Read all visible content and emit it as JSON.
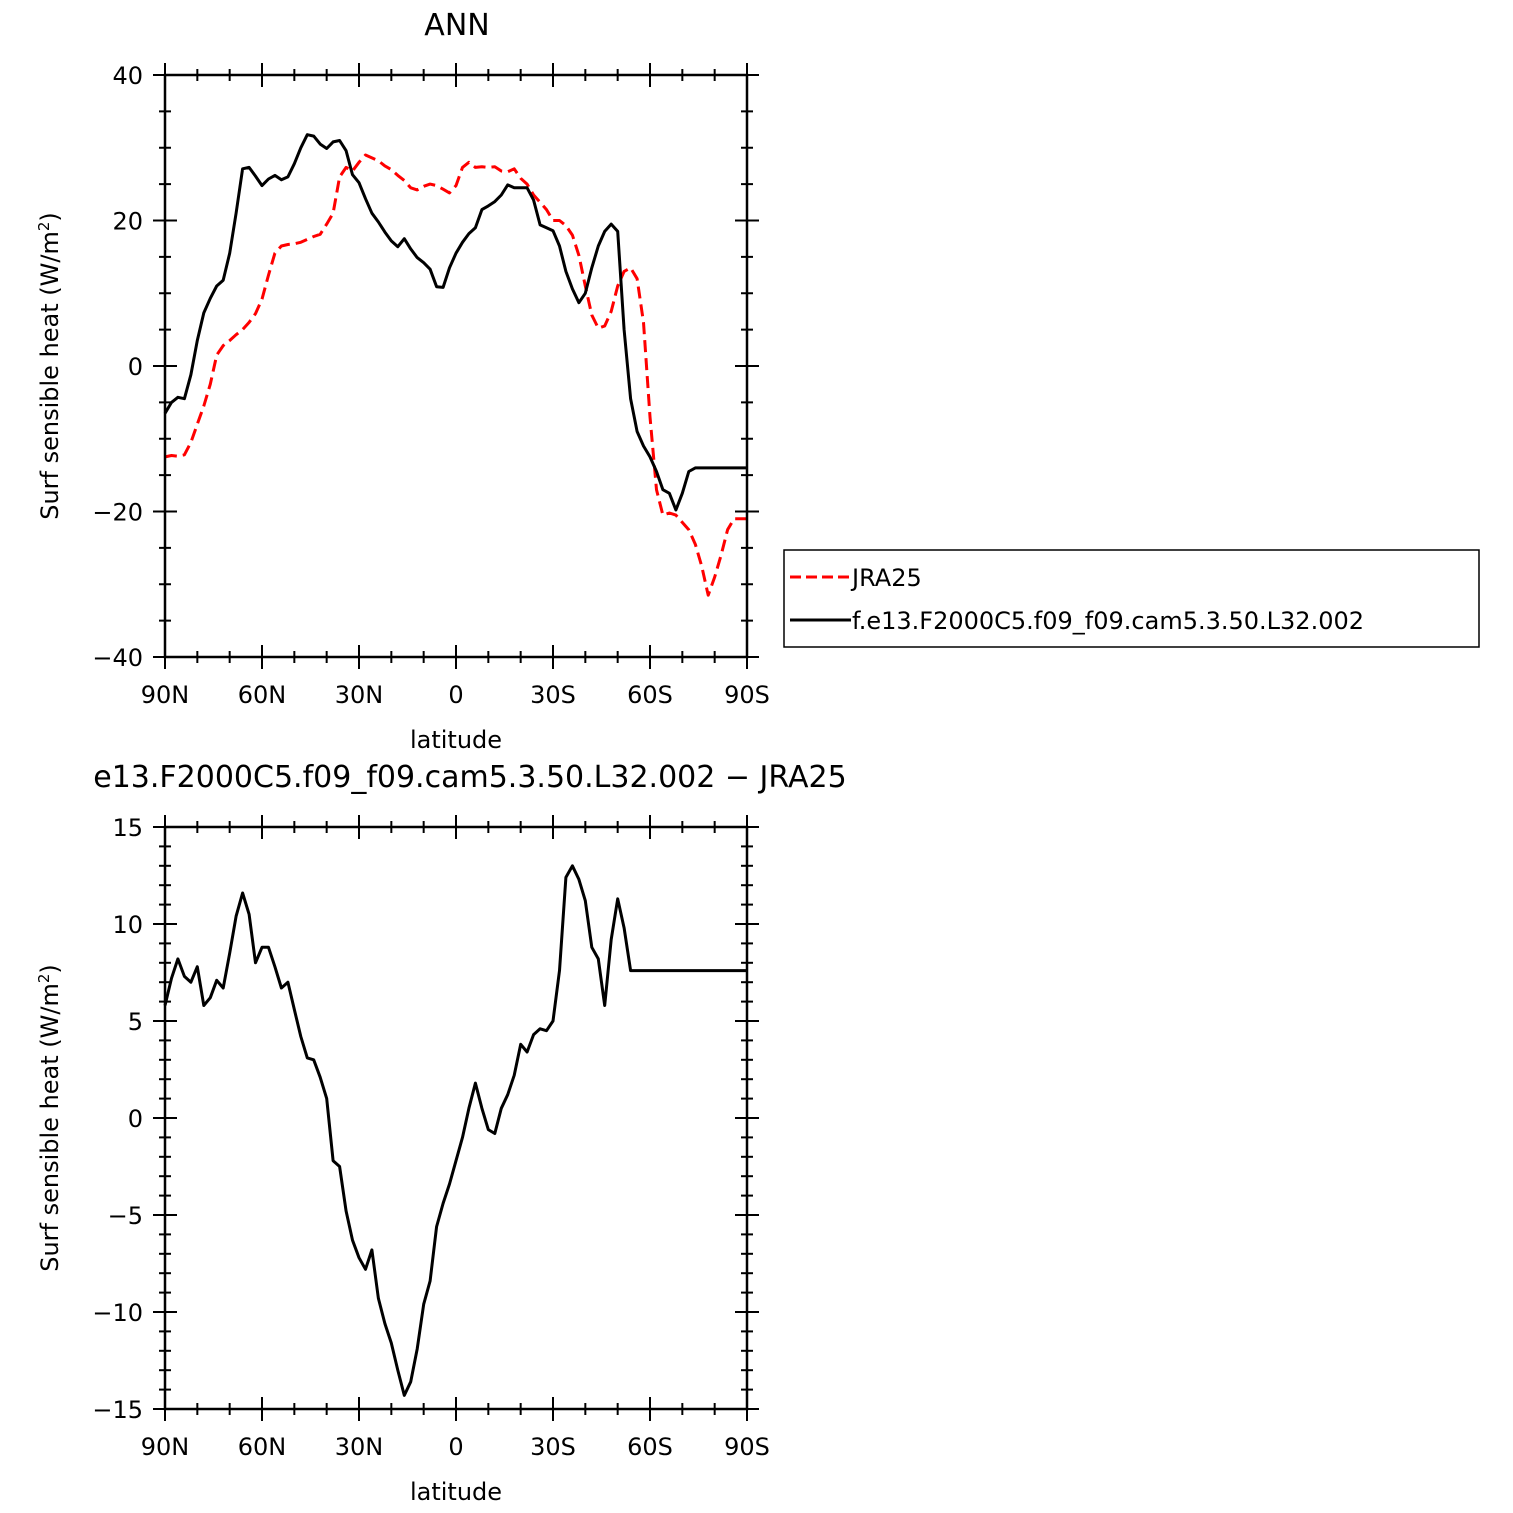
{
  "chart_data": [
    {
      "type": "line",
      "title": "ANN",
      "xlabel": "latitude",
      "ylabel_main": "Surf sensible heat (W/m",
      "ylabel_sup": "2",
      "ylabel_close": ")",
      "xlim": [
        90,
        -90
      ],
      "ylim": [
        -40,
        40
      ],
      "x_ticks": [
        {
          "value": 90,
          "label": "90N"
        },
        {
          "value": 60,
          "label": "60N"
        },
        {
          "value": 30,
          "label": "30N"
        },
        {
          "value": 0,
          "label": "0"
        },
        {
          "value": -30,
          "label": "30S"
        },
        {
          "value": -60,
          "label": "60S"
        },
        {
          "value": -90,
          "label": "90S"
        }
      ],
      "y_ticks": [
        {
          "value": -40,
          "label": "−40"
        },
        {
          "value": -20,
          "label": "−20"
        },
        {
          "value": 0,
          "label": "0"
        },
        {
          "value": 20,
          "label": "20"
        },
        {
          "value": 40,
          "label": "40"
        }
      ],
      "legend": {
        "placement": "right"
      },
      "series": [
        {
          "name": "JRA25",
          "color": "#ff0000",
          "dash": "dashed",
          "x": [
            90,
            88,
            86,
            84,
            82,
            80,
            78,
            76,
            74,
            72,
            70,
            68,
            66,
            64,
            62,
            60,
            58,
            56,
            54,
            52,
            50,
            48,
            46,
            44,
            42,
            40,
            38,
            36,
            34,
            32,
            30,
            28,
            26,
            24,
            22,
            20,
            18,
            16,
            14,
            12,
            10,
            8,
            6,
            4,
            2,
            0,
            -2,
            -4,
            -6,
            -8,
            -10,
            -12,
            -14,
            -16,
            -18,
            -20,
            -22,
            -24,
            -26,
            -28,
            -30,
            -32,
            -34,
            -36,
            -38,
            -40,
            -42,
            -44,
            -46,
            -48,
            -50,
            -52,
            -54,
            -56,
            -58,
            -60,
            -62,
            -64,
            -66,
            -68,
            -70,
            -72,
            -74,
            -76,
            -78,
            -80,
            -82,
            -84,
            -86,
            -88,
            -90
          ],
          "y": [
            -12.5,
            -12.3,
            -12.4,
            -12.2,
            -10.5,
            -8.0,
            -5.5,
            -2.5,
            1.5,
            2.8,
            3.5,
            4.3,
            5.0,
            6.0,
            7.2,
            9.2,
            12.5,
            15.5,
            16.5,
            16.7,
            16.8,
            17.0,
            17.4,
            17.8,
            18.1,
            19.5,
            21.0,
            26.0,
            27.3,
            26.8,
            28.0,
            29.0,
            28.6,
            28.2,
            27.5,
            27.0,
            26.2,
            25.5,
            24.5,
            24.2,
            24.7,
            25.0,
            24.8,
            24.3,
            23.8,
            24.8,
            27.3,
            28.0,
            27.3,
            27.4,
            27.3,
            27.4,
            26.8,
            26.7,
            27.1,
            25.8,
            25.0,
            23.5,
            22.5,
            21.5,
            20.0,
            20.0,
            19.3,
            18.0,
            15.2,
            11.0,
            7.0,
            5.2,
            5.5,
            7.5,
            11.0,
            13.0,
            13.5,
            12.0,
            6.0,
            -7.0,
            -17.0,
            -20.5,
            -20.2,
            -20.5,
            -21.5,
            -22.5,
            -24.5,
            -27.5,
            -31.5,
            -29.0,
            -26.0,
            -22.5,
            -21.0,
            -21.0,
            -21.0
          ]
        },
        {
          "name": "f.e13.F2000C5.f09_f09.cam5.3.50.L32.002",
          "color": "#000000",
          "dash": "solid",
          "x": [
            90,
            88,
            86,
            84,
            82,
            80,
            78,
            76,
            74,
            72,
            70,
            68,
            66,
            64,
            62,
            60,
            58,
            56,
            54,
            52,
            50,
            48,
            46,
            44,
            42,
            40,
            38,
            36,
            34,
            32,
            30,
            28,
            26,
            24,
            22,
            20,
            18,
            16,
            14,
            12,
            10,
            8,
            6,
            4,
            2,
            0,
            -2,
            -4,
            -6,
            -8,
            -10,
            -12,
            -14,
            -16,
            -18,
            -20,
            -22,
            -24,
            -26,
            -28,
            -30,
            -32,
            -34,
            -36,
            -38,
            -40,
            -42,
            -44,
            -46,
            -48,
            -50,
            -52,
            -54,
            -56,
            -58,
            -60,
            -62,
            -64,
            -66,
            -68,
            -70,
            -72,
            -74,
            -76,
            -78,
            -80,
            -82,
            -84,
            -86,
            -88,
            -90
          ],
          "y": [
            -6.5,
            -5.0,
            -4.3,
            -4.5,
            -1.2,
            3.5,
            7.3,
            9.3,
            11.0,
            11.8,
            15.5,
            21.0,
            27.1,
            27.3,
            26.1,
            24.8,
            25.7,
            26.2,
            25.6,
            26.0,
            27.8,
            30.0,
            31.8,
            31.6,
            30.5,
            29.9,
            30.8,
            31.0,
            29.6,
            26.3,
            25.2,
            23.0,
            21.0,
            19.8,
            18.4,
            17.2,
            16.4,
            17.5,
            16.1,
            14.9,
            14.2,
            13.3,
            10.9,
            10.8,
            13.5,
            15.5,
            17.0,
            18.2,
            19.0,
            21.5,
            22.0,
            22.6,
            23.5,
            24.9,
            24.5,
            24.5,
            24.5,
            22.8,
            19.4,
            19.0,
            18.6,
            16.5,
            13.0,
            10.6,
            8.7,
            10.0,
            13.5,
            16.5,
            18.5,
            19.5,
            18.5,
            5.0,
            -4.5,
            -9.0,
            -11.0,
            -12.5,
            -14.5,
            -17.0,
            -17.5,
            -19.8,
            -17.5,
            -14.5,
            -14.0,
            -14.0,
            -14.0,
            -14.0,
            -14.0,
            -14.0,
            -14.0,
            -14.0,
            -14.0
          ]
        }
      ]
    },
    {
      "type": "line",
      "title": "e13.F2000C5.f09_f09.cam5.3.50.L32.002 − JRA25",
      "xlabel": "latitude",
      "ylabel_main": "Surf sensible heat (W/m",
      "ylabel_sup": "2",
      "ylabel_close": ")",
      "xlim": [
        90,
        -90
      ],
      "ylim": [
        -15,
        15
      ],
      "x_ticks": [
        {
          "value": 90,
          "label": "90N"
        },
        {
          "value": 60,
          "label": "60N"
        },
        {
          "value": 30,
          "label": "30N"
        },
        {
          "value": 0,
          "label": "0"
        },
        {
          "value": -30,
          "label": "30S"
        },
        {
          "value": -60,
          "label": "60S"
        },
        {
          "value": -90,
          "label": "90S"
        }
      ],
      "y_ticks": [
        {
          "value": -15,
          "label": "−15"
        },
        {
          "value": -10,
          "label": "−10"
        },
        {
          "value": -5,
          "label": "−5"
        },
        {
          "value": 0,
          "label": "0"
        },
        {
          "value": 5,
          "label": "5"
        },
        {
          "value": 10,
          "label": "10"
        },
        {
          "value": 15,
          "label": "15"
        }
      ],
      "series": [
        {
          "color": "#000000",
          "dash": "solid",
          "x": [
            90,
            88,
            86,
            84,
            82,
            80,
            78,
            76,
            74,
            72,
            70,
            68,
            66,
            64,
            62,
            60,
            58,
            56,
            54,
            52,
            50,
            48,
            46,
            44,
            42,
            40,
            38,
            36,
            34,
            32,
            30,
            28,
            26,
            24,
            22,
            20,
            18,
            16,
            14,
            12,
            10,
            8,
            6,
            4,
            2,
            0,
            -2,
            -4,
            -6,
            -8,
            -10,
            -12,
            -14,
            -16,
            -18,
            -20,
            -22,
            -24,
            -26,
            -28,
            -30,
            -32,
            -34,
            -36,
            -38,
            -40,
            -42,
            -44,
            -46,
            -48,
            -50,
            -52,
            -54,
            -56,
            -58,
            -60,
            -62,
            -64,
            -66,
            -68,
            -70,
            -72,
            -74,
            -76,
            -78,
            -80,
            -82,
            -84,
            -86,
            -88,
            -90
          ],
          "y": [
            5.8,
            7.2,
            8.2,
            7.3,
            7.0,
            7.8,
            5.8,
            6.2,
            7.1,
            6.7,
            8.5,
            10.4,
            11.6,
            10.5,
            8.0,
            8.8,
            8.8,
            7.8,
            6.7,
            7.0,
            5.6,
            4.2,
            3.1,
            3.0,
            2.1,
            1.0,
            -2.2,
            -2.5,
            -4.8,
            -6.3,
            -7.2,
            -7.8,
            -6.8,
            -9.3,
            -10.6,
            -11.6,
            -13.0,
            -14.3,
            -13.6,
            -11.9,
            -9.6,
            -8.4,
            -5.6,
            -4.4,
            -3.4,
            -2.2,
            -1.0,
            0.5,
            1.8,
            0.5,
            -0.6,
            -0.8,
            0.5,
            1.2,
            2.2,
            3.8,
            3.4,
            4.3,
            4.6,
            4.5,
            5.0,
            7.6,
            12.4,
            13.0,
            12.3,
            11.2,
            8.8,
            8.2,
            5.8,
            9.2,
            11.3,
            9.8,
            7.6,
            7.6,
            7.6,
            7.6,
            7.6,
            7.6,
            7.6,
            7.6,
            7.6,
            7.6,
            7.6,
            7.6,
            7.6,
            7.6,
            7.6,
            7.6,
            7.6,
            7.6,
            7.6
          ]
        }
      ]
    }
  ]
}
